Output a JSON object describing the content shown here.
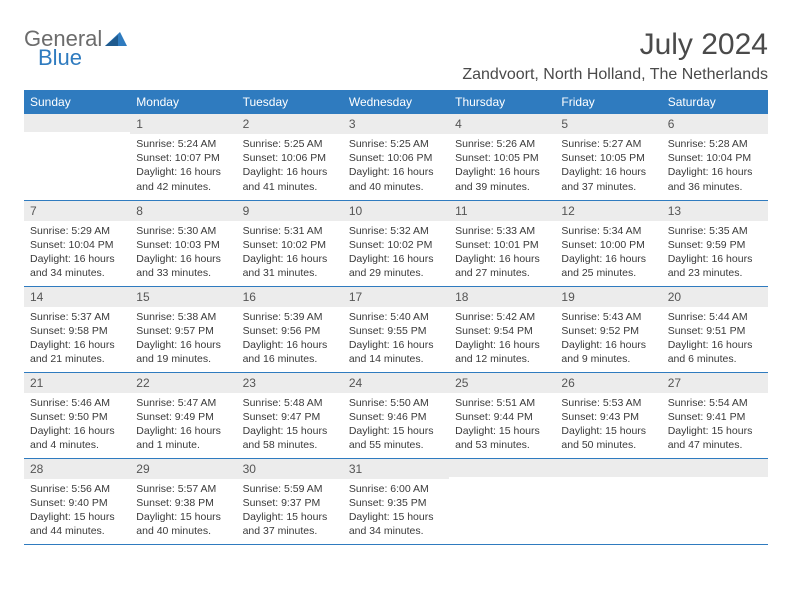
{
  "brand": {
    "general": "General",
    "blue": "Blue"
  },
  "header": {
    "month_title": "July 2024",
    "location": "Zandvoort, North Holland, The Netherlands"
  },
  "colors": {
    "header_bg": "#2f7bbf",
    "header_text": "#ffffff",
    "daynum_bg": "#ececec",
    "border": "#2f7bbf",
    "body_text": "#3a3a3a",
    "title_text": "#4a4a4a"
  },
  "daysOfWeek": [
    "Sunday",
    "Monday",
    "Tuesday",
    "Wednesday",
    "Thursday",
    "Friday",
    "Saturday"
  ],
  "weeks": [
    [
      {
        "n": "",
        "sunrise": "",
        "sunset": "",
        "daylight": ""
      },
      {
        "n": "1",
        "sunrise": "Sunrise: 5:24 AM",
        "sunset": "Sunset: 10:07 PM",
        "daylight": "Daylight: 16 hours and 42 minutes."
      },
      {
        "n": "2",
        "sunrise": "Sunrise: 5:25 AM",
        "sunset": "Sunset: 10:06 PM",
        "daylight": "Daylight: 16 hours and 41 minutes."
      },
      {
        "n": "3",
        "sunrise": "Sunrise: 5:25 AM",
        "sunset": "Sunset: 10:06 PM",
        "daylight": "Daylight: 16 hours and 40 minutes."
      },
      {
        "n": "4",
        "sunrise": "Sunrise: 5:26 AM",
        "sunset": "Sunset: 10:05 PM",
        "daylight": "Daylight: 16 hours and 39 minutes."
      },
      {
        "n": "5",
        "sunrise": "Sunrise: 5:27 AM",
        "sunset": "Sunset: 10:05 PM",
        "daylight": "Daylight: 16 hours and 37 minutes."
      },
      {
        "n": "6",
        "sunrise": "Sunrise: 5:28 AM",
        "sunset": "Sunset: 10:04 PM",
        "daylight": "Daylight: 16 hours and 36 minutes."
      }
    ],
    [
      {
        "n": "7",
        "sunrise": "Sunrise: 5:29 AM",
        "sunset": "Sunset: 10:04 PM",
        "daylight": "Daylight: 16 hours and 34 minutes."
      },
      {
        "n": "8",
        "sunrise": "Sunrise: 5:30 AM",
        "sunset": "Sunset: 10:03 PM",
        "daylight": "Daylight: 16 hours and 33 minutes."
      },
      {
        "n": "9",
        "sunrise": "Sunrise: 5:31 AM",
        "sunset": "Sunset: 10:02 PM",
        "daylight": "Daylight: 16 hours and 31 minutes."
      },
      {
        "n": "10",
        "sunrise": "Sunrise: 5:32 AM",
        "sunset": "Sunset: 10:02 PM",
        "daylight": "Daylight: 16 hours and 29 minutes."
      },
      {
        "n": "11",
        "sunrise": "Sunrise: 5:33 AM",
        "sunset": "Sunset: 10:01 PM",
        "daylight": "Daylight: 16 hours and 27 minutes."
      },
      {
        "n": "12",
        "sunrise": "Sunrise: 5:34 AM",
        "sunset": "Sunset: 10:00 PM",
        "daylight": "Daylight: 16 hours and 25 minutes."
      },
      {
        "n": "13",
        "sunrise": "Sunrise: 5:35 AM",
        "sunset": "Sunset: 9:59 PM",
        "daylight": "Daylight: 16 hours and 23 minutes."
      }
    ],
    [
      {
        "n": "14",
        "sunrise": "Sunrise: 5:37 AM",
        "sunset": "Sunset: 9:58 PM",
        "daylight": "Daylight: 16 hours and 21 minutes."
      },
      {
        "n": "15",
        "sunrise": "Sunrise: 5:38 AM",
        "sunset": "Sunset: 9:57 PM",
        "daylight": "Daylight: 16 hours and 19 minutes."
      },
      {
        "n": "16",
        "sunrise": "Sunrise: 5:39 AM",
        "sunset": "Sunset: 9:56 PM",
        "daylight": "Daylight: 16 hours and 16 minutes."
      },
      {
        "n": "17",
        "sunrise": "Sunrise: 5:40 AM",
        "sunset": "Sunset: 9:55 PM",
        "daylight": "Daylight: 16 hours and 14 minutes."
      },
      {
        "n": "18",
        "sunrise": "Sunrise: 5:42 AM",
        "sunset": "Sunset: 9:54 PM",
        "daylight": "Daylight: 16 hours and 12 minutes."
      },
      {
        "n": "19",
        "sunrise": "Sunrise: 5:43 AM",
        "sunset": "Sunset: 9:52 PM",
        "daylight": "Daylight: 16 hours and 9 minutes."
      },
      {
        "n": "20",
        "sunrise": "Sunrise: 5:44 AM",
        "sunset": "Sunset: 9:51 PM",
        "daylight": "Daylight: 16 hours and 6 minutes."
      }
    ],
    [
      {
        "n": "21",
        "sunrise": "Sunrise: 5:46 AM",
        "sunset": "Sunset: 9:50 PM",
        "daylight": "Daylight: 16 hours and 4 minutes."
      },
      {
        "n": "22",
        "sunrise": "Sunrise: 5:47 AM",
        "sunset": "Sunset: 9:49 PM",
        "daylight": "Daylight: 16 hours and 1 minute."
      },
      {
        "n": "23",
        "sunrise": "Sunrise: 5:48 AM",
        "sunset": "Sunset: 9:47 PM",
        "daylight": "Daylight: 15 hours and 58 minutes."
      },
      {
        "n": "24",
        "sunrise": "Sunrise: 5:50 AM",
        "sunset": "Sunset: 9:46 PM",
        "daylight": "Daylight: 15 hours and 55 minutes."
      },
      {
        "n": "25",
        "sunrise": "Sunrise: 5:51 AM",
        "sunset": "Sunset: 9:44 PM",
        "daylight": "Daylight: 15 hours and 53 minutes."
      },
      {
        "n": "26",
        "sunrise": "Sunrise: 5:53 AM",
        "sunset": "Sunset: 9:43 PM",
        "daylight": "Daylight: 15 hours and 50 minutes."
      },
      {
        "n": "27",
        "sunrise": "Sunrise: 5:54 AM",
        "sunset": "Sunset: 9:41 PM",
        "daylight": "Daylight: 15 hours and 47 minutes."
      }
    ],
    [
      {
        "n": "28",
        "sunrise": "Sunrise: 5:56 AM",
        "sunset": "Sunset: 9:40 PM",
        "daylight": "Daylight: 15 hours and 44 minutes."
      },
      {
        "n": "29",
        "sunrise": "Sunrise: 5:57 AM",
        "sunset": "Sunset: 9:38 PM",
        "daylight": "Daylight: 15 hours and 40 minutes."
      },
      {
        "n": "30",
        "sunrise": "Sunrise: 5:59 AM",
        "sunset": "Sunset: 9:37 PM",
        "daylight": "Daylight: 15 hours and 37 minutes."
      },
      {
        "n": "31",
        "sunrise": "Sunrise: 6:00 AM",
        "sunset": "Sunset: 9:35 PM",
        "daylight": "Daylight: 15 hours and 34 minutes."
      },
      {
        "n": "",
        "sunrise": "",
        "sunset": "",
        "daylight": ""
      },
      {
        "n": "",
        "sunrise": "",
        "sunset": "",
        "daylight": ""
      },
      {
        "n": "",
        "sunrise": "",
        "sunset": "",
        "daylight": ""
      }
    ]
  ]
}
